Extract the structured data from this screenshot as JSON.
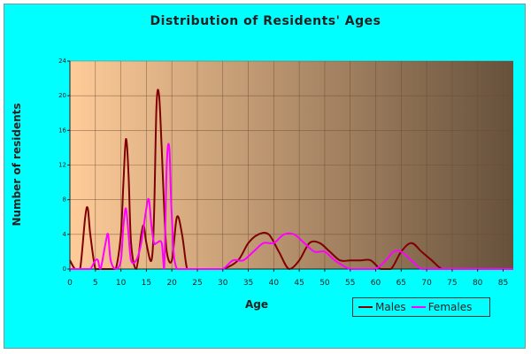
{
  "chart_data": {
    "type": "line",
    "title": "Distribution of Residents' Ages",
    "xlabel": "Age",
    "ylabel": "Number of residents",
    "xlim": [
      0,
      87
    ],
    "ylim": [
      0,
      24
    ],
    "xticks": [
      0,
      5,
      10,
      15,
      20,
      25,
      30,
      35,
      40,
      45,
      50,
      55,
      60,
      65,
      70,
      75,
      80,
      85
    ],
    "yticks": [
      0,
      4,
      8,
      12,
      16,
      20,
      24
    ],
    "grid": true,
    "legend_position": "bottom-right",
    "background_gradient": [
      "#ffcc99",
      "#66513c"
    ],
    "series": [
      {
        "name": "Males",
        "color": "#800000",
        "x": [
          0,
          1,
          2,
          3,
          3.5,
          4,
          5,
          6,
          7,
          8,
          9,
          10,
          10.5,
          11,
          11.5,
          12,
          13,
          14,
          14.5,
          15,
          16,
          16.5,
          17,
          17.5,
          18,
          18.5,
          19,
          20,
          21,
          22,
          23,
          24,
          25,
          28,
          30,
          33,
          35,
          37,
          39,
          41,
          43,
          45,
          47,
          49,
          51,
          53,
          55,
          57,
          59,
          61,
          63,
          65,
          67,
          69,
          71,
          73,
          75,
          80,
          85,
          87
        ],
        "y": [
          1,
          0,
          0,
          6,
          7,
          4,
          0,
          0,
          0,
          0,
          0,
          4,
          10,
          15,
          11,
          3,
          0,
          4,
          5,
          3,
          1,
          6,
          19,
          20,
          14,
          7,
          2,
          1,
          6,
          4,
          0,
          0,
          0,
          0,
          0,
          1,
          3,
          4,
          4,
          2,
          0,
          1,
          3,
          3,
          2,
          1,
          1,
          1,
          1,
          0,
          0,
          2,
          3,
          2,
          1,
          0,
          0,
          0,
          0,
          0
        ]
      },
      {
        "name": "Females",
        "color": "#ff00ff",
        "x": [
          0,
          3,
          4,
          5,
          5.5,
          6,
          7,
          7.5,
          8,
          9,
          10,
          10.5,
          11,
          11.5,
          12,
          13,
          14,
          15,
          15.5,
          16,
          16.5,
          17,
          18,
          18.5,
          19,
          19.5,
          20,
          21,
          25,
          28,
          30,
          32,
          34,
          36,
          38,
          40,
          42,
          44,
          46,
          48,
          50,
          52,
          55,
          58,
          60,
          62,
          63.5,
          65,
          67,
          69,
          71,
          75,
          80,
          87
        ],
        "y": [
          0,
          0,
          0,
          1,
          1,
          0,
          3,
          4,
          1,
          0,
          1,
          5,
          7,
          4,
          1,
          1,
          3,
          7,
          8,
          5,
          3,
          3,
          3,
          0,
          12,
          14,
          6,
          0,
          0,
          0,
          0,
          1,
          1,
          2,
          3,
          3,
          4,
          4,
          3,
          2,
          2,
          1,
          0,
          0,
          0,
          1,
          2,
          2,
          1,
          0,
          0,
          0,
          0,
          0
        ]
      }
    ]
  }
}
